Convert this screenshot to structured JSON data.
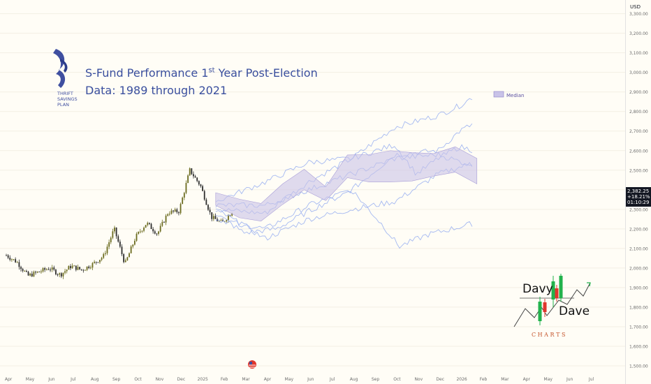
{
  "header": {
    "currency": "USD",
    "title_line1_a": "S-Fund Performance 1",
    "title_line1_sup": "st",
    "title_line1_b": " Year Post-Election",
    "title_line2": "Data: 1989 through 2021"
  },
  "logo": {
    "text_lines": [
      "THRIFT",
      "SAVINGS",
      "PLAN"
    ]
  },
  "legend": {
    "median_label": "Median"
  },
  "price_label": {
    "price": "2,382.25",
    "change": "+18.21%",
    "timer": "01:10:29"
  },
  "watermark": {
    "word1": "Davy",
    "word2": "Dave",
    "word3": "C H A R T S"
  },
  "colors": {
    "background": "#fffdf6",
    "title": "#3a4f9e",
    "band_fill": "#c9c3e8",
    "analog_lines": "#8ea8f0",
    "candle_up": "#6b6b1f",
    "candle_down": "#2d2d2d",
    "watermark_green": "#22b24c",
    "watermark_red": "#e0362c",
    "watermark_text_red": "#c4532a"
  },
  "chart_data": {
    "type": "line",
    "title": "S-Fund Performance 1st Year Post-Election",
    "subtitle": "Data: 1989 through 2021",
    "ylabel": "USD",
    "ylim": [
      1450,
      3370
    ],
    "y_ticks": [
      1500,
      1600,
      1700,
      1800,
      1900,
      2000,
      2100,
      2200,
      2300,
      2400,
      2500,
      2600,
      2700,
      2800,
      2900,
      3000,
      3100,
      3200,
      3300
    ],
    "y_tick_labels": [
      "1,500.00",
      "1,600.00",
      "1,700.00",
      "1,800.00",
      "1,900.00",
      "2,000.00",
      "2,100.00",
      "2,200.00",
      "2,300.00",
      "2,400.00",
      "2,500.00",
      "2,600.00",
      "2,700.00",
      "2,800.00",
      "2,900.00",
      "3,000.00",
      "3,100.00",
      "3,200.00",
      "3,300.00"
    ],
    "x_ticks": [
      "Apr",
      "May",
      "Jun",
      "Jul",
      "Aug",
      "Sep",
      "Oct",
      "Nov",
      "Dec",
      "2025",
      "Feb",
      "Mar",
      "Apr",
      "May",
      "Jun",
      "Jul",
      "Aug",
      "Sep",
      "Oct",
      "Nov",
      "Dec",
      "2026",
      "Feb",
      "Mar",
      "Apr",
      "May",
      "Jun",
      "Jul"
    ],
    "x_domain": [
      0,
      28.7
    ],
    "price_series": {
      "name": "S-Fund",
      "x": [
        0,
        0.5,
        1,
        1.5,
        2,
        2.5,
        3,
        3.5,
        4,
        4.5,
        5,
        5.5,
        6,
        6.5,
        7,
        7.5,
        8,
        8.5,
        9,
        9.5,
        10,
        10.5
      ],
      "values": [
        2065,
        2030,
        1960,
        1980,
        2000,
        1965,
        2010,
        1990,
        2020,
        2060,
        2200,
        2020,
        2160,
        2230,
        2175,
        2285,
        2290,
        2500,
        2420,
        2260,
        2230,
        2295
      ]
    },
    "median": {
      "name": "Median",
      "x": [
        9.7,
        10.8,
        11.8,
        12.8,
        13.8,
        14.8,
        15.8,
        16.8,
        17.8,
        18.8,
        19.8,
        20.8,
        21.8
      ],
      "upper": [
        2385,
        2352,
        2330,
        2430,
        2505,
        2415,
        2578,
        2580,
        2600,
        2590,
        2585,
        2620,
        2560
      ],
      "lower": [
        2320,
        2257,
        2240,
        2325,
        2400,
        2345,
        2462,
        2440,
        2440,
        2445,
        2470,
        2490,
        2430
      ]
    },
    "analog_series": [
      {
        "x": [
          9.7,
          12,
          14,
          16,
          18,
          20,
          21,
          21.7
        ],
        "values": [
          2300,
          2280,
          2440,
          2560,
          2720,
          2780,
          2830,
          2880
        ]
      },
      {
        "x": [
          9.7,
          12,
          14,
          16,
          18,
          20,
          21,
          21.7
        ],
        "values": [
          2250,
          2200,
          2320,
          2400,
          2580,
          2600,
          2700,
          2740
        ]
      },
      {
        "x": [
          9.7,
          12,
          14,
          16,
          18,
          20,
          21.7
        ],
        "values": [
          2300,
          2150,
          2250,
          2300,
          2340,
          2480,
          2540
        ]
      },
      {
        "x": [
          9.7,
          11,
          12.5,
          14,
          16,
          17.5,
          18.2,
          19.5,
          21,
          21.7
        ],
        "values": [
          2280,
          2180,
          2200,
          2290,
          2400,
          2210,
          2110,
          2170,
          2210,
          2230
        ]
      },
      {
        "x": [
          9.7,
          12,
          14,
          16,
          18,
          19,
          20,
          21,
          21.7
        ],
        "values": [
          2340,
          2440,
          2540,
          2560,
          2630,
          2480,
          2560,
          2620,
          2600
        ]
      },
      {
        "x": [
          9.7,
          12,
          14,
          16,
          18,
          20,
          21.7
        ],
        "values": [
          2320,
          2320,
          2400,
          2480,
          2560,
          2580,
          2520
        ]
      }
    ]
  }
}
